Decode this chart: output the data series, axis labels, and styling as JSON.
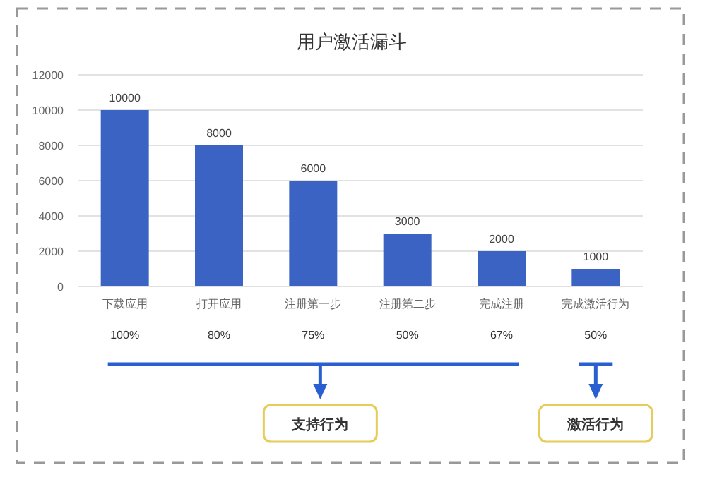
{
  "chart_data": {
    "type": "bar",
    "title": "用户激活漏斗",
    "categories": [
      "下载应用",
      "打开应用",
      "注册第一步",
      "注册第二步",
      "完成注册",
      "完成激活行为"
    ],
    "values": [
      10000,
      8000,
      6000,
      3000,
      2000,
      1000
    ],
    "color": "#3b63c4",
    "ylim": [
      0,
      12000
    ],
    "yticks": [
      0,
      2000,
      4000,
      6000,
      8000,
      10000,
      12000
    ],
    "grid": "y",
    "data_labels": true,
    "annotations": [
      "100%",
      "80%",
      "75%",
      "50%",
      "67%",
      "50%",
      "支持行为",
      "激活行为"
    ]
  }
}
